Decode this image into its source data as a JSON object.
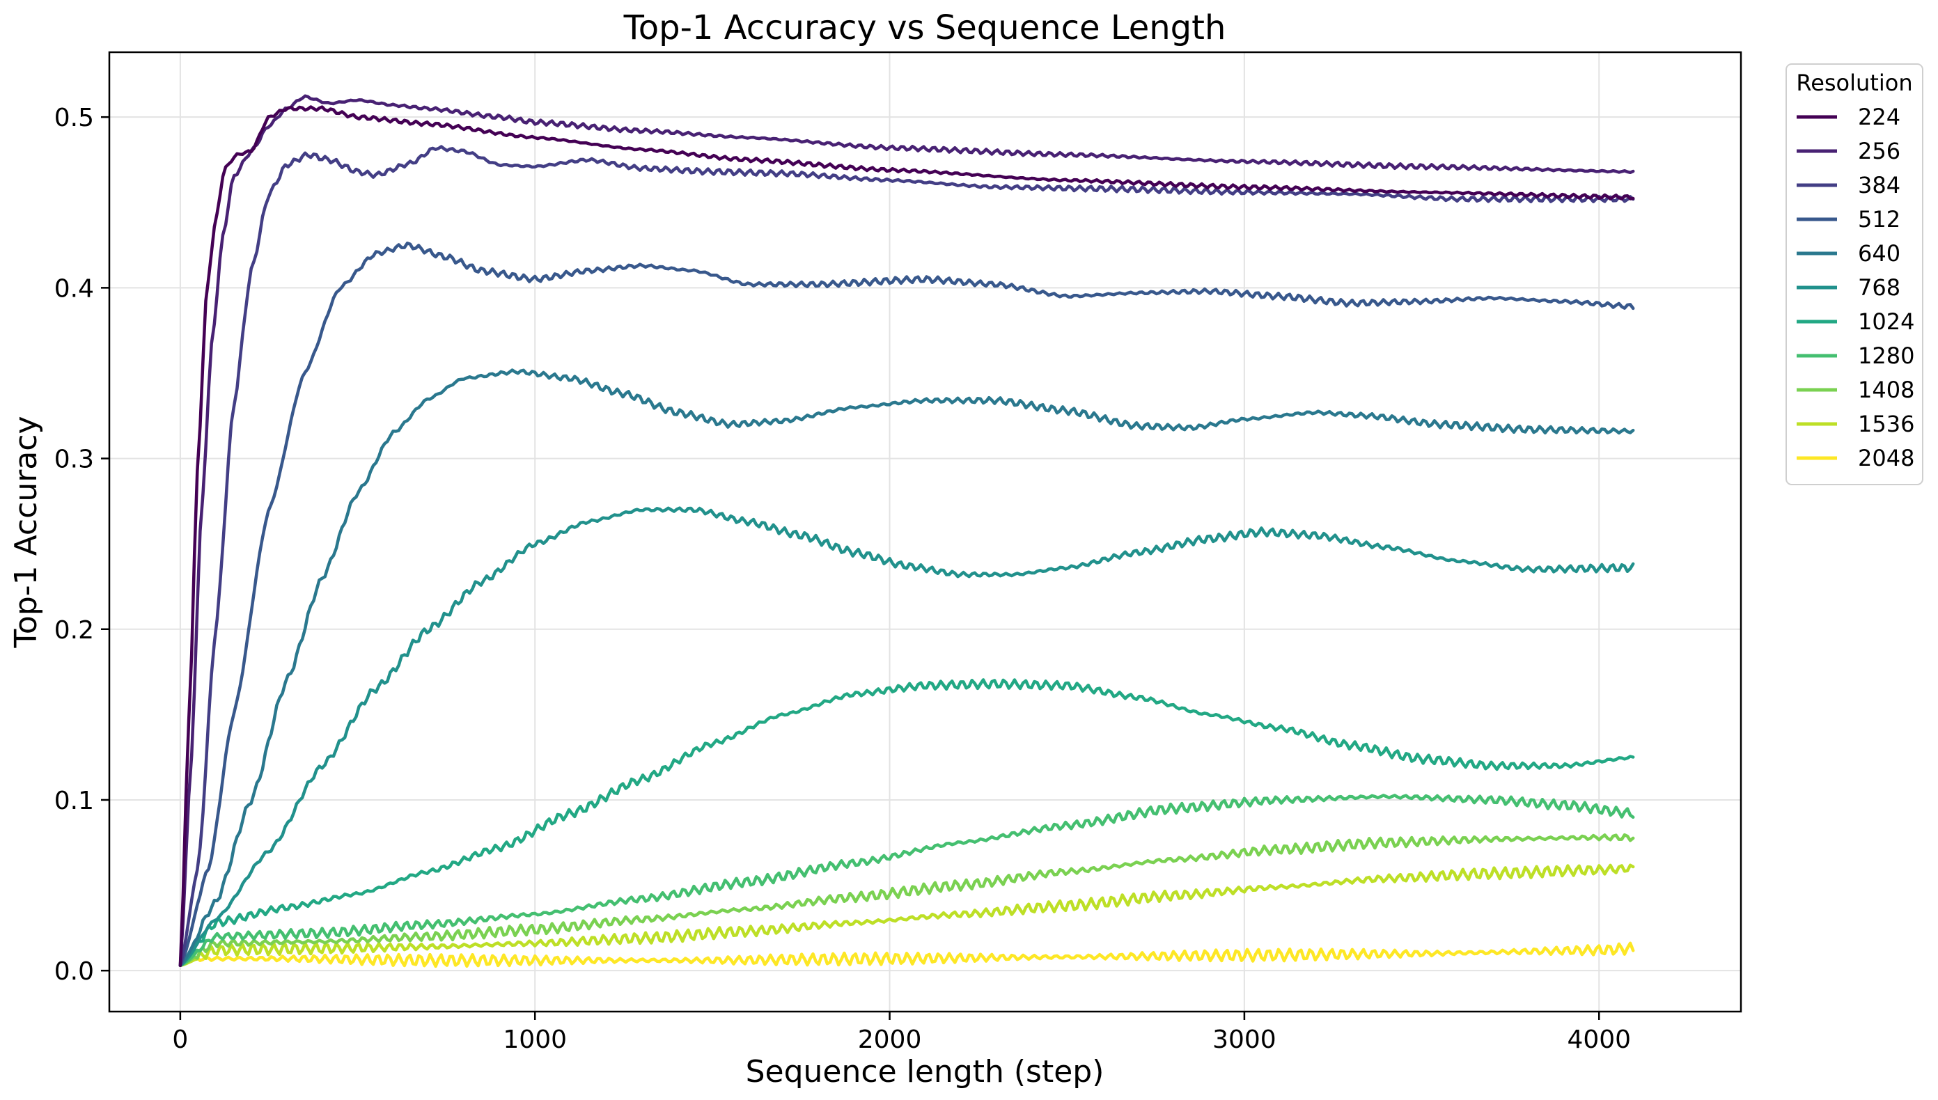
{
  "chart_data": {
    "type": "line",
    "title": "Top-1 Accuracy vs Sequence Length",
    "xlabel": "Sequence length (step)",
    "ylabel": "Top-1 Accuracy",
    "xlim": [
      -200,
      4400
    ],
    "ylim": [
      -0.024,
      0.538
    ],
    "xticks": [
      0,
      1000,
      2000,
      3000,
      4000
    ],
    "xtick_labels": [
      "0",
      "1000",
      "2000",
      "3000",
      "4000"
    ],
    "yticks": [
      0.0,
      0.1,
      0.2,
      0.3,
      0.4,
      0.5
    ],
    "ytick_labels": [
      "0.0",
      "0.1",
      "0.2",
      "0.3",
      "0.4",
      "0.5"
    ],
    "grid": true,
    "legend": {
      "title": "Resolution",
      "placement": "outside-top-right"
    },
    "series": [
      {
        "name": "224",
        "color": "#440154",
        "points": [
          [
            0,
            0.003
          ],
          [
            25,
            0.15
          ],
          [
            50,
            0.3
          ],
          [
            75,
            0.4
          ],
          [
            100,
            0.44
          ],
          [
            125,
            0.47
          ],
          [
            160,
            0.478
          ],
          [
            200,
            0.48
          ],
          [
            250,
            0.5
          ],
          [
            300,
            0.505
          ],
          [
            400,
            0.505
          ],
          [
            500,
            0.5
          ],
          [
            700,
            0.496
          ],
          [
            1000,
            0.488
          ],
          [
            1300,
            0.481
          ],
          [
            1600,
            0.475
          ],
          [
            2000,
            0.469
          ],
          [
            2500,
            0.463
          ],
          [
            3000,
            0.459
          ],
          [
            3500,
            0.456
          ],
          [
            4100,
            0.453
          ]
        ]
      },
      {
        "name": "256",
        "color": "#482173",
        "points": [
          [
            0,
            0.003
          ],
          [
            30,
            0.12
          ],
          [
            60,
            0.27
          ],
          [
            90,
            0.37
          ],
          [
            120,
            0.43
          ],
          [
            150,
            0.465
          ],
          [
            200,
            0.48
          ],
          [
            250,
            0.495
          ],
          [
            300,
            0.505
          ],
          [
            350,
            0.512
          ],
          [
            420,
            0.508
          ],
          [
            500,
            0.51
          ],
          [
            600,
            0.507
          ],
          [
            700,
            0.505
          ],
          [
            900,
            0.5
          ],
          [
            1000,
            0.497
          ],
          [
            1300,
            0.492
          ],
          [
            1600,
            0.488
          ],
          [
            2000,
            0.482
          ],
          [
            2500,
            0.478
          ],
          [
            3000,
            0.474
          ],
          [
            3500,
            0.471
          ],
          [
            4100,
            0.468
          ]
        ]
      },
      {
        "name": "384",
        "color": "#433e85",
        "points": [
          [
            0,
            0.003
          ],
          [
            50,
            0.06
          ],
          [
            100,
            0.2
          ],
          [
            150,
            0.33
          ],
          [
            200,
            0.41
          ],
          [
            250,
            0.455
          ],
          [
            300,
            0.472
          ],
          [
            360,
            0.478
          ],
          [
            420,
            0.475
          ],
          [
            500,
            0.468
          ],
          [
            550,
            0.466
          ],
          [
            650,
            0.473
          ],
          [
            720,
            0.482
          ],
          [
            800,
            0.48
          ],
          [
            900,
            0.472
          ],
          [
            1000,
            0.471
          ],
          [
            1150,
            0.475
          ],
          [
            1300,
            0.47
          ],
          [
            1500,
            0.468
          ],
          [
            1700,
            0.467
          ],
          [
            2000,
            0.463
          ],
          [
            2300,
            0.459
          ],
          [
            2600,
            0.458
          ],
          [
            3000,
            0.456
          ],
          [
            3300,
            0.455
          ],
          [
            3600,
            0.452
          ],
          [
            4100,
            0.452
          ]
        ]
      },
      {
        "name": "512",
        "color": "#38588c",
        "points": [
          [
            0,
            0.003
          ],
          [
            80,
            0.06
          ],
          [
            150,
            0.15
          ],
          [
            250,
            0.27
          ],
          [
            350,
            0.35
          ],
          [
            450,
            0.4
          ],
          [
            550,
            0.42
          ],
          [
            640,
            0.425
          ],
          [
            750,
            0.418
          ],
          [
            850,
            0.41
          ],
          [
            1000,
            0.405
          ],
          [
            1150,
            0.41
          ],
          [
            1300,
            0.413
          ],
          [
            1450,
            0.41
          ],
          [
            1600,
            0.402
          ],
          [
            1800,
            0.402
          ],
          [
            2100,
            0.405
          ],
          [
            2300,
            0.402
          ],
          [
            2500,
            0.395
          ],
          [
            2700,
            0.397
          ],
          [
            2900,
            0.398
          ],
          [
            3100,
            0.395
          ],
          [
            3300,
            0.391
          ],
          [
            3500,
            0.392
          ],
          [
            3700,
            0.394
          ],
          [
            3900,
            0.392
          ],
          [
            4100,
            0.389
          ]
        ]
      },
      {
        "name": "640",
        "color": "#2a788e",
        "points": [
          [
            0,
            0.003
          ],
          [
            100,
            0.04
          ],
          [
            200,
            0.1
          ],
          [
            300,
            0.17
          ],
          [
            400,
            0.23
          ],
          [
            500,
            0.28
          ],
          [
            600,
            0.315
          ],
          [
            700,
            0.335
          ],
          [
            800,
            0.347
          ],
          [
            950,
            0.351
          ],
          [
            1100,
            0.347
          ],
          [
            1250,
            0.338
          ],
          [
            1400,
            0.327
          ],
          [
            1550,
            0.32
          ],
          [
            1700,
            0.322
          ],
          [
            1900,
            0.33
          ],
          [
            2100,
            0.334
          ],
          [
            2300,
            0.334
          ],
          [
            2500,
            0.328
          ],
          [
            2700,
            0.319
          ],
          [
            2850,
            0.318
          ],
          [
            3000,
            0.323
          ],
          [
            3200,
            0.327
          ],
          [
            3350,
            0.325
          ],
          [
            3550,
            0.32
          ],
          [
            3800,
            0.317
          ],
          [
            4100,
            0.316
          ]
        ]
      },
      {
        "name": "768",
        "color": "#21918c",
        "points": [
          [
            0,
            0.003
          ],
          [
            100,
            0.03
          ],
          [
            250,
            0.07
          ],
          [
            400,
            0.12
          ],
          [
            550,
            0.165
          ],
          [
            700,
            0.2
          ],
          [
            850,
            0.228
          ],
          [
            1000,
            0.25
          ],
          [
            1150,
            0.263
          ],
          [
            1300,
            0.27
          ],
          [
            1450,
            0.27
          ],
          [
            1600,
            0.263
          ],
          [
            1750,
            0.255
          ],
          [
            1900,
            0.245
          ],
          [
            2050,
            0.237
          ],
          [
            2200,
            0.232
          ],
          [
            2350,
            0.232
          ],
          [
            2500,
            0.236
          ],
          [
            2700,
            0.245
          ],
          [
            2900,
            0.253
          ],
          [
            3050,
            0.257
          ],
          [
            3200,
            0.255
          ],
          [
            3400,
            0.248
          ],
          [
            3600,
            0.24
          ],
          [
            3800,
            0.235
          ],
          [
            4100,
            0.236
          ]
        ]
      },
      {
        "name": "1024",
        "color": "#22a884",
        "points": [
          [
            0,
            0.003
          ],
          [
            100,
            0.028
          ],
          [
            300,
            0.037
          ],
          [
            500,
            0.045
          ],
          [
            700,
            0.058
          ],
          [
            900,
            0.072
          ],
          [
            1100,
            0.092
          ],
          [
            1300,
            0.112
          ],
          [
            1500,
            0.133
          ],
          [
            1700,
            0.15
          ],
          [
            1900,
            0.162
          ],
          [
            2100,
            0.167
          ],
          [
            2300,
            0.168
          ],
          [
            2500,
            0.167
          ],
          [
            2700,
            0.16
          ],
          [
            2900,
            0.15
          ],
          [
            3100,
            0.142
          ],
          [
            3300,
            0.132
          ],
          [
            3500,
            0.124
          ],
          [
            3700,
            0.12
          ],
          [
            3900,
            0.12
          ],
          [
            4100,
            0.125
          ]
        ]
      },
      {
        "name": "1280",
        "color": "#44bf70",
        "points": [
          [
            0,
            0.003
          ],
          [
            100,
            0.02
          ],
          [
            400,
            0.022
          ],
          [
            700,
            0.027
          ],
          [
            1000,
            0.033
          ],
          [
            1300,
            0.042
          ],
          [
            1600,
            0.052
          ],
          [
            1900,
            0.063
          ],
          [
            2200,
            0.075
          ],
          [
            2500,
            0.085
          ],
          [
            2800,
            0.095
          ],
          [
            3100,
            0.1
          ],
          [
            3400,
            0.102
          ],
          [
            3700,
            0.1
          ],
          [
            3900,
            0.097
          ],
          [
            4100,
            0.092
          ]
        ]
      },
      {
        "name": "1408",
        "color": "#7ad151",
        "points": [
          [
            0,
            0.003
          ],
          [
            100,
            0.016
          ],
          [
            400,
            0.017
          ],
          [
            700,
            0.02
          ],
          [
            1000,
            0.024
          ],
          [
            1300,
            0.03
          ],
          [
            1600,
            0.036
          ],
          [
            1900,
            0.043
          ],
          [
            2200,
            0.05
          ],
          [
            2500,
            0.058
          ],
          [
            2800,
            0.065
          ],
          [
            3100,
            0.071
          ],
          [
            3400,
            0.075
          ],
          [
            3700,
            0.077
          ],
          [
            4000,
            0.078
          ],
          [
            4100,
            0.078
          ]
        ]
      },
      {
        "name": "1536",
        "color": "#bddf26",
        "points": [
          [
            0,
            0.003
          ],
          [
            100,
            0.012
          ],
          [
            400,
            0.013
          ],
          [
            700,
            0.014
          ],
          [
            1000,
            0.016
          ],
          [
            1300,
            0.019
          ],
          [
            1600,
            0.023
          ],
          [
            1900,
            0.028
          ],
          [
            2200,
            0.033
          ],
          [
            2500,
            0.038
          ],
          [
            2800,
            0.044
          ],
          [
            3100,
            0.049
          ],
          [
            3400,
            0.054
          ],
          [
            3700,
            0.057
          ],
          [
            4000,
            0.059
          ],
          [
            4100,
            0.06
          ]
        ]
      },
      {
        "name": "2048",
        "color": "#fde725",
        "points": [
          [
            0,
            0.003
          ],
          [
            50,
            0.007
          ],
          [
            300,
            0.007
          ],
          [
            700,
            0.006
          ],
          [
            1000,
            0.006
          ],
          [
            1500,
            0.006
          ],
          [
            2000,
            0.007
          ],
          [
            2500,
            0.008
          ],
          [
            3000,
            0.009
          ],
          [
            3500,
            0.01
          ],
          [
            4000,
            0.012
          ],
          [
            4100,
            0.013
          ]
        ]
      }
    ]
  }
}
